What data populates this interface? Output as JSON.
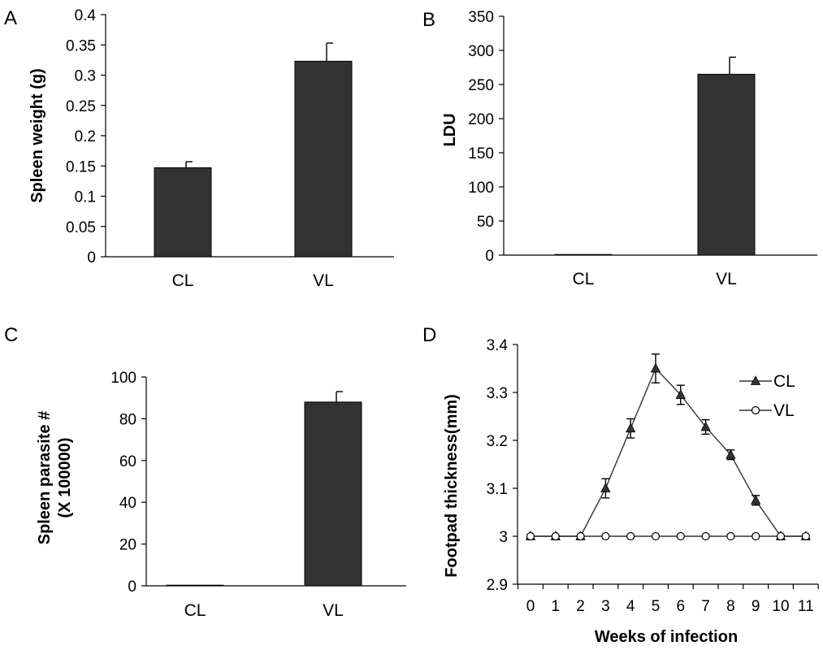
{
  "chart_data": [
    {
      "panel": "A",
      "type": "bar",
      "categories": [
        "CL",
        "VL"
      ],
      "values": [
        0.147,
        0.323
      ],
      "errors": [
        0.01,
        0.03
      ],
      "ylabel": "Spleen weight (g)",
      "xlabel": "",
      "ylim": [
        0,
        0.4
      ],
      "yticks": [
        "0",
        "0.05",
        "0.1",
        "0.15",
        "0.2",
        "0.25",
        "0.3",
        "0.35",
        "0.4"
      ],
      "bar_color": "#333333"
    },
    {
      "panel": "B",
      "type": "bar",
      "categories": [
        "CL",
        "VL"
      ],
      "values": [
        0.5,
        265
      ],
      "errors": [
        0,
        25
      ],
      "ylabel": "LDU",
      "xlabel": "",
      "ylim": [
        0,
        350
      ],
      "yticks": [
        "0",
        "50",
        "100",
        "150",
        "200",
        "250",
        "300",
        "350"
      ],
      "bar_color": "#333333"
    },
    {
      "panel": "C",
      "type": "bar",
      "categories": [
        "CL",
        "VL"
      ],
      "values": [
        0.2,
        88
      ],
      "errors": [
        0,
        5
      ],
      "ylabel_lines": [
        "Spleen parasite #",
        "(X 100000)"
      ],
      "xlabel": "",
      "ylim": [
        0,
        100
      ],
      "yticks": [
        "0",
        "20",
        "40",
        "60",
        "80",
        "100"
      ],
      "bar_color": "#333333"
    },
    {
      "panel": "D",
      "type": "line",
      "x": [
        0,
        1,
        2,
        3,
        4,
        5,
        6,
        7,
        8,
        9,
        10,
        11
      ],
      "xticks": [
        "0",
        "1",
        "2",
        "3",
        "4",
        "5",
        "6",
        "7",
        "8",
        "9",
        "10",
        "11"
      ],
      "series": [
        {
          "name": "CL",
          "marker": "triangle",
          "values": [
            3.0,
            3.0,
            3.0,
            3.1,
            3.225,
            3.35,
            3.295,
            3.228,
            3.17,
            3.075,
            3.0,
            3.0
          ],
          "errors": [
            0,
            0,
            0,
            0.02,
            0.02,
            0.03,
            0.02,
            0.015,
            0.01,
            0.01,
            0,
            0
          ]
        },
        {
          "name": "VL",
          "marker": "circle",
          "values": [
            3.0,
            3.0,
            3.0,
            3.0,
            3.0,
            3.0,
            3.0,
            3.0,
            3.0,
            3.0,
            3.0,
            3.0
          ],
          "errors": [
            0,
            0,
            0,
            0,
            0,
            0,
            0,
            0,
            0,
            0,
            0,
            0
          ]
        }
      ],
      "ylabel": "Footpad thickness(mm)",
      "xlabel": "Weeks of infection",
      "ylim": [
        2.9,
        3.4
      ],
      "yticks": [
        "2.9",
        "3",
        "3.1",
        "3.2",
        "3.3",
        "3.4"
      ],
      "legend": "top-right"
    }
  ]
}
